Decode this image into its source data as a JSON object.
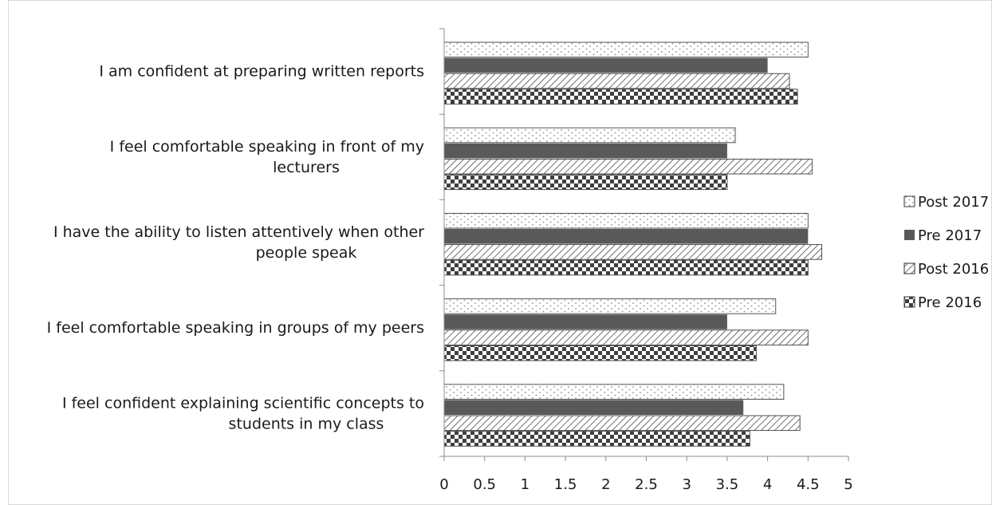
{
  "chart_data": {
    "type": "bar",
    "orientation": "horizontal",
    "categories": [
      [
        "I am confident at preparing written reports"
      ],
      [
        "I feel comfortable speaking in front of my",
        "lecturers"
      ],
      [
        "I have the ability to listen attentively when other",
        "people speak"
      ],
      [
        "I feel comfortable speaking in groups of my peers"
      ],
      [
        "I feel confident explaining scientific concepts to",
        "students in my class"
      ]
    ],
    "series": [
      {
        "name": "Post 2017",
        "pattern": "dots",
        "values": [
          4.5,
          3.6,
          4.5,
          4.1,
          4.2
        ]
      },
      {
        "name": "Pre 2017",
        "pattern": "solid",
        "values": [
          4.0,
          3.5,
          4.5,
          3.5,
          3.7
        ]
      },
      {
        "name": "Post 2016",
        "pattern": "hatch",
        "values": [
          4.27,
          4.55,
          4.67,
          4.5,
          4.4
        ]
      },
      {
        "name": "Pre 2016",
        "pattern": "checker",
        "values": [
          4.37,
          3.5,
          4.5,
          3.86,
          3.78
        ]
      }
    ],
    "xticks": [
      "0",
      "0.5",
      "1",
      "1.5",
      "2",
      "2.5",
      "3",
      "3.5",
      "4",
      "4.5",
      "5"
    ],
    "xlim": [
      0,
      5
    ],
    "grid": false,
    "legend_position": "right",
    "colors": {
      "solid": "#595959",
      "outline": "#404040",
      "dots": "#8c8c8c"
    }
  }
}
